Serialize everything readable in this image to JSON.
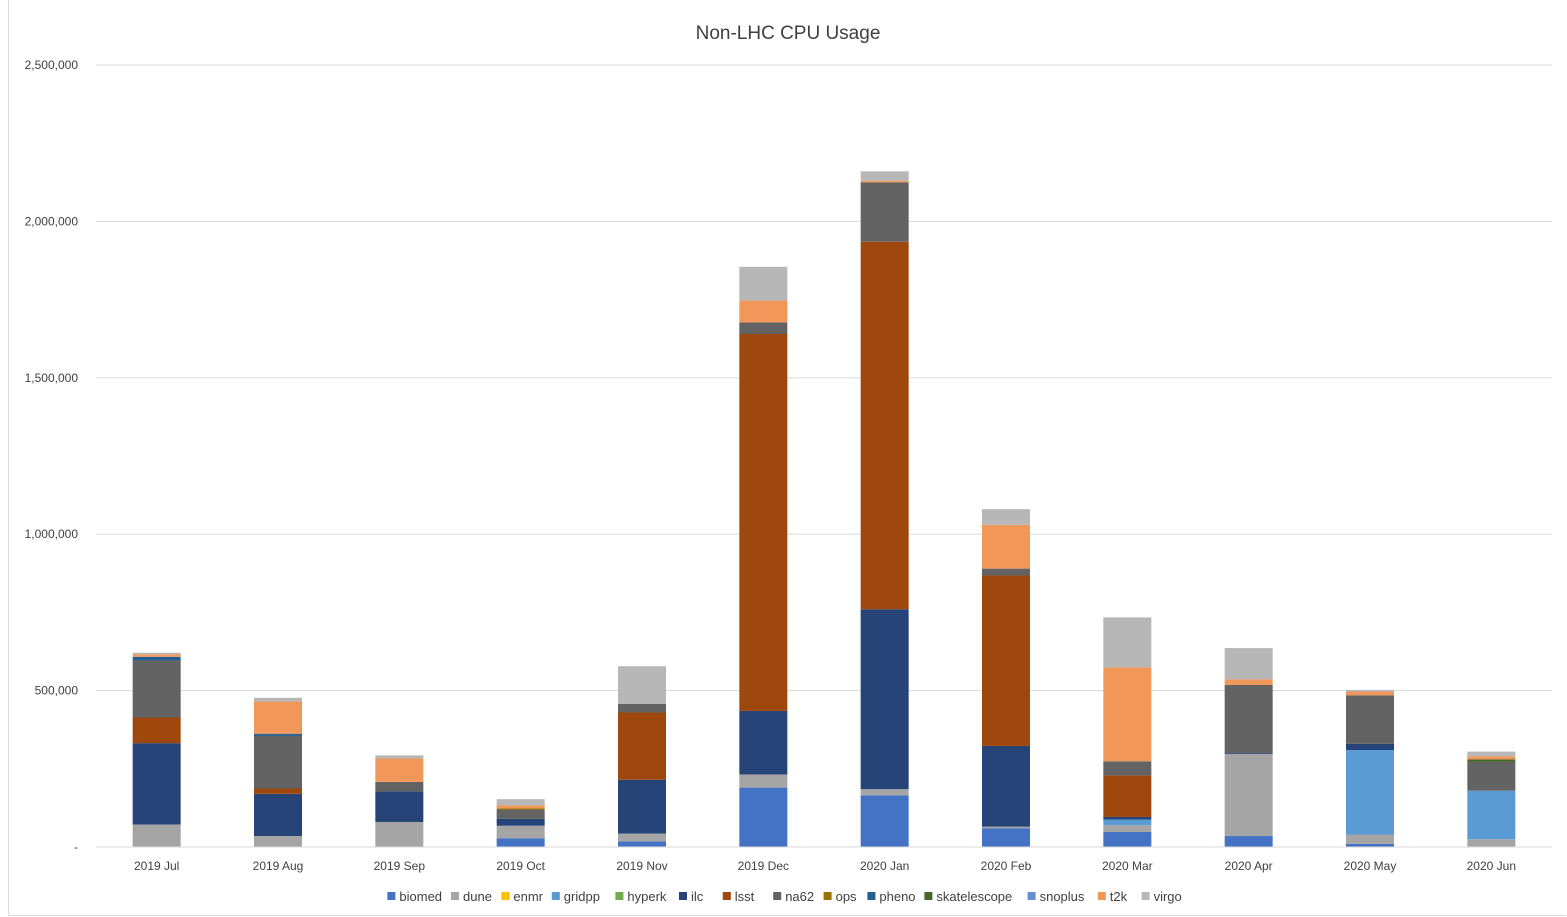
{
  "chart_data": {
    "type": "bar",
    "stacked": true,
    "title": "Non-LHC CPU Usage",
    "xlabel": "",
    "ylabel": "",
    "ylim": [
      0,
      2500000
    ],
    "y_ticks": [
      "-",
      "500,000",
      "1,000,000",
      "1,500,000",
      "2,000,000",
      "2,500,000"
    ],
    "y_tick_values": [
      0,
      500000,
      1000000,
      1500000,
      2000000,
      2500000
    ],
    "grid": true,
    "legend_position": "bottom",
    "categories": [
      "2019 Jul",
      "2019 Aug",
      "2019 Sep",
      "2019 Oct",
      "2019 Nov",
      "2019 Dec",
      "2020 Jan",
      "2020 Feb",
      "2020 Mar",
      "2020 Apr",
      "2020 May",
      "2020 Jun"
    ],
    "series": [
      {
        "name": "biomed",
        "color": "#4472c4",
        "values": [
          0,
          0,
          0,
          28000,
          18000,
          190000,
          165000,
          60000,
          48000,
          35000,
          10000,
          0
        ]
      },
      {
        "name": "dune",
        "color": "#a5a5a5",
        "values": [
          72000,
          35000,
          80000,
          40000,
          25000,
          42000,
          20000,
          5000,
          22000,
          262000,
          30000,
          25000
        ]
      },
      {
        "name": "enmr",
        "color": "#ffc000",
        "values": [
          0,
          0,
          0,
          0,
          0,
          0,
          0,
          0,
          0,
          0,
          0,
          0
        ]
      },
      {
        "name": "gridpp",
        "color": "#5b9bd5",
        "values": [
          0,
          0,
          0,
          0,
          0,
          0,
          0,
          0,
          18000,
          0,
          270000,
          155000
        ]
      },
      {
        "name": "hyperk",
        "color": "#70ad47",
        "values": [
          0,
          0,
          0,
          0,
          0,
          0,
          0,
          0,
          0,
          0,
          0,
          0
        ]
      },
      {
        "name": "ilc",
        "color": "#264478",
        "values": [
          260000,
          135000,
          98000,
          22000,
          172000,
          203000,
          575000,
          258000,
          8000,
          3000,
          20000,
          0
        ]
      },
      {
        "name": "lsst",
        "color": "#9e480e",
        "values": [
          82000,
          17000,
          0,
          0,
          215000,
          1205000,
          1175000,
          545000,
          133000,
          0,
          0,
          0
        ]
      },
      {
        "name": "na62",
        "color": "#636363",
        "values": [
          182000,
          168000,
          30000,
          30000,
          28000,
          37000,
          190000,
          22000,
          45000,
          218000,
          155000,
          92000
        ]
      },
      {
        "name": "ops",
        "color": "#997300",
        "values": [
          0,
          0,
          0,
          3000,
          0,
          0,
          0,
          0,
          0,
          0,
          0,
          0
        ]
      },
      {
        "name": "pheno",
        "color": "#255e91",
        "values": [
          12000,
          7000,
          0,
          0,
          0,
          0,
          0,
          0,
          0,
          0,
          0,
          0
        ]
      },
      {
        "name": "skatelescope",
        "color": "#43682b",
        "values": [
          0,
          0,
          0,
          0,
          0,
          0,
          0,
          0,
          0,
          0,
          0,
          8000
        ]
      },
      {
        "name": "snoplus",
        "color": "#698ed0",
        "values": [
          0,
          0,
          0,
          0,
          0,
          0,
          0,
          0,
          0,
          0,
          0,
          0
        ]
      },
      {
        "name": "t2k",
        "color": "#f1975a",
        "values": [
          8000,
          103000,
          75000,
          10000,
          0,
          70000,
          5000,
          140000,
          300000,
          18000,
          12000,
          10000
        ]
      },
      {
        "name": "virgo",
        "color": "#b7b7b7",
        "values": [
          5000,
          12000,
          10000,
          20000,
          120000,
          108000,
          30000,
          50000,
          160000,
          100000,
          5000,
          15000
        ]
      }
    ]
  }
}
